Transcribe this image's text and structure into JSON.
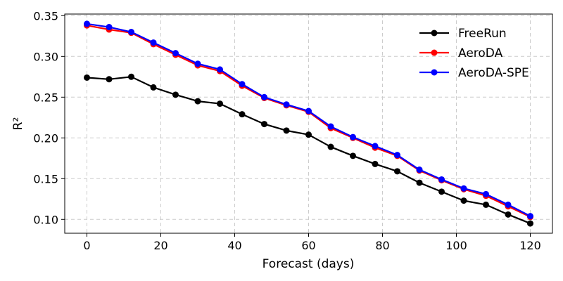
{
  "chart_data": {
    "type": "line",
    "title": "",
    "xlabel": "Forecast (days)",
    "ylabel": "R²",
    "xlim": [
      -6,
      126
    ],
    "ylim": [
      0.083,
      0.352
    ],
    "xticks": [
      0,
      20,
      40,
      60,
      80,
      100,
      120
    ],
    "yticks": [
      0.1,
      0.15,
      0.2,
      0.25,
      0.3,
      0.35
    ],
    "grid": true,
    "legend_position": "top-right",
    "x": [
      0,
      6,
      12,
      18,
      24,
      30,
      36,
      42,
      48,
      54,
      60,
      66,
      72,
      78,
      84,
      90,
      96,
      102,
      108,
      114,
      120
    ],
    "series": [
      {
        "name": "FreeRun",
        "color": "#000000",
        "values": [
          0.274,
          0.272,
          0.275,
          0.262,
          0.253,
          0.245,
          0.242,
          0.229,
          0.217,
          0.209,
          0.204,
          0.189,
          0.178,
          0.168,
          0.159,
          0.145,
          0.134,
          0.123,
          0.118,
          0.106,
          0.095
        ]
      },
      {
        "name": "AeroDA",
        "color": "#ff0000",
        "values": [
          0.338,
          0.333,
          0.329,
          0.315,
          0.302,
          0.289,
          0.282,
          0.264,
          0.249,
          0.24,
          0.232,
          0.212,
          0.2,
          0.188,
          0.178,
          0.16,
          0.148,
          0.137,
          0.129,
          0.116,
          0.103
        ]
      },
      {
        "name": "AeroDA-SPE",
        "color": "#0000ff",
        "values": [
          0.34,
          0.336,
          0.33,
          0.317,
          0.304,
          0.291,
          0.284,
          0.266,
          0.25,
          0.241,
          0.233,
          0.214,
          0.201,
          0.19,
          0.179,
          0.161,
          0.149,
          0.138,
          0.131,
          0.118,
          0.104
        ]
      }
    ]
  }
}
